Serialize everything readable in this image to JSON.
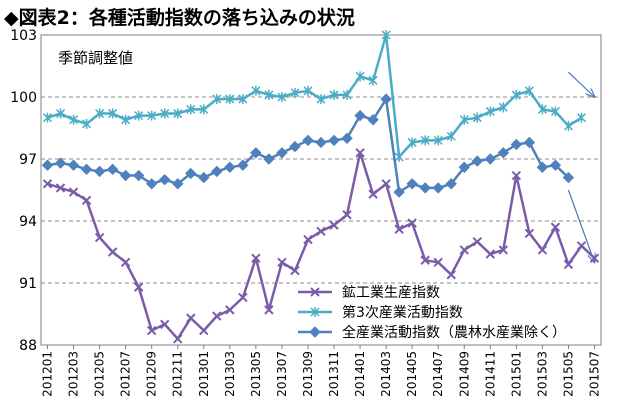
{
  "chart_data": {
    "type": "line",
    "title": "◆図表2：各種活動指数の落ち込みの状況",
    "annotation": "季節調整値",
    "ylim": [
      88,
      103
    ],
    "yticks": [
      88,
      91,
      94,
      97,
      100,
      103
    ],
    "grid": true,
    "legend_position": "bottom-right",
    "x": [
      "201201",
      "201202",
      "201203",
      "201204",
      "201205",
      "201206",
      "201207",
      "201208",
      "201209",
      "201210",
      "201211",
      "201212",
      "201301",
      "201302",
      "201303",
      "201304",
      "201305",
      "201306",
      "201307",
      "201308",
      "201309",
      "201310",
      "201311",
      "201312",
      "201401",
      "201402",
      "201403",
      "201404",
      "201405",
      "201406",
      "201407",
      "201408",
      "201409",
      "201410",
      "201411",
      "201412",
      "201501",
      "201502",
      "201503",
      "201504",
      "201505",
      "201506",
      "201507"
    ],
    "x_tick_labels": [
      "201201",
      "201203",
      "201205",
      "201207",
      "201209",
      "201211",
      "201301",
      "201303",
      "201305",
      "201307",
      "201309",
      "201311",
      "201401",
      "201403",
      "201405",
      "201407",
      "201409",
      "201411",
      "201501",
      "201503",
      "201505",
      "201507"
    ],
    "series": [
      {
        "name": "鉱工業生産指数",
        "color": "#7b5ca8",
        "marker": "x",
        "values": [
          95.8,
          95.6,
          95.4,
          95.0,
          93.2,
          92.5,
          92.0,
          90.8,
          88.7,
          89.0,
          88.3,
          89.3,
          88.7,
          89.4,
          89.7,
          90.3,
          92.2,
          89.7,
          92.0,
          91.6,
          93.1,
          93.5,
          93.8,
          94.3,
          97.3,
          95.3,
          95.8,
          93.6,
          93.9,
          92.1,
          92.0,
          91.4,
          92.6,
          93.0,
          92.4,
          92.6,
          96.2,
          93.4,
          92.6,
          93.7,
          91.9,
          92.8,
          92.2
        ]
      },
      {
        "name": "第3次産業活動指数",
        "color": "#4bacc6",
        "marker": "asterisk",
        "values": [
          99.0,
          99.2,
          98.9,
          98.7,
          99.2,
          99.2,
          98.9,
          99.1,
          99.1,
          99.2,
          99.2,
          99.4,
          99.4,
          99.9,
          99.9,
          99.9,
          100.3,
          100.1,
          100.0,
          100.2,
          100.3,
          99.9,
          100.1,
          100.1,
          101.0,
          100.8,
          103.0,
          97.1,
          97.8,
          97.9,
          97.9,
          98.1,
          98.9,
          99.0,
          99.3,
          99.5,
          100.1,
          100.3,
          99.4,
          99.3,
          98.6,
          99.0,
          null
        ]
      },
      {
        "name": "全産業活動指数（農林水産業除く）",
        "color": "#4f81bd",
        "marker": "diamond",
        "values": [
          96.7,
          96.8,
          96.7,
          96.5,
          96.4,
          96.5,
          96.2,
          96.2,
          95.8,
          96.0,
          95.8,
          96.3,
          96.1,
          96.4,
          96.6,
          96.7,
          97.3,
          97.0,
          97.3,
          97.6,
          97.9,
          97.8,
          97.9,
          98.0,
          99.1,
          98.9,
          99.9,
          95.4,
          95.8,
          95.6,
          95.6,
          95.8,
          96.6,
          96.9,
          97.0,
          97.3,
          97.7,
          97.8,
          96.6,
          96.7,
          96.1,
          null,
          null
        ]
      }
    ],
    "trend_arrows": [
      {
        "from": [
          40,
          101.2
        ],
        "to": [
          42,
          100.0
        ]
      },
      {
        "from": [
          40,
          95.5
        ],
        "to": [
          42,
          92.0
        ]
      }
    ]
  }
}
